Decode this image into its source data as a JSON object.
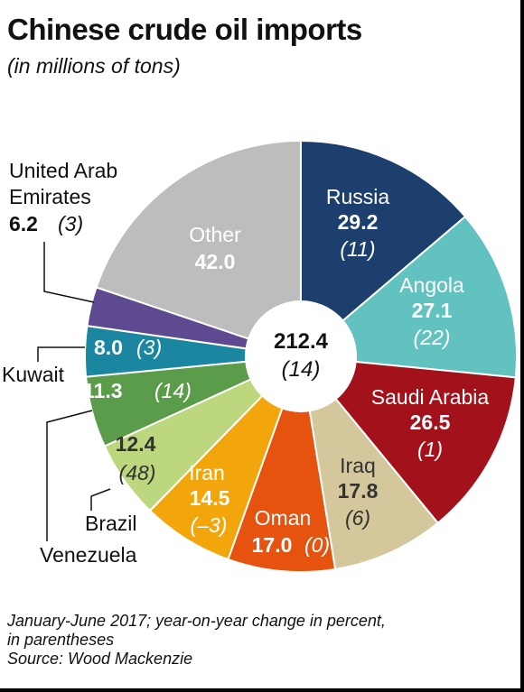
{
  "title": "Chinese crude oil imports",
  "subtitle": "(in millions of tons)",
  "footnote": {
    "line1": "January-June 2017; year-on-year change in percent,",
    "line2": "in parentheses",
    "source": "Source: Wood Mackenzie"
  },
  "chart_data": {
    "type": "pie",
    "total": {
      "value": "212.4",
      "change": "(14)"
    },
    "slices": [
      {
        "name": "Russia",
        "value": 29.2,
        "value_label": "29.2",
        "change": "(11)",
        "color": "#1c3f6e"
      },
      {
        "name": "Angola",
        "value": 27.1,
        "value_label": "27.1",
        "change": "(22)",
        "color": "#62c2bf"
      },
      {
        "name": "Saudi Arabia",
        "value": 26.5,
        "value_label": "26.5",
        "change": "(1)",
        "color": "#a3111b"
      },
      {
        "name": "Iraq",
        "value": 17.8,
        "value_label": "17.8",
        "change": "(6)",
        "color": "#d4c79b"
      },
      {
        "name": "Oman",
        "value": 17.0,
        "value_label": "17.0",
        "change": "(0)",
        "color": "#e6530f"
      },
      {
        "name": "Iran",
        "value": 14.5,
        "value_label": "14.5",
        "change": "(–3)",
        "color": "#f2a60c"
      },
      {
        "name": "Brazil",
        "value": 12.4,
        "value_label": "12.4",
        "change": "(48)",
        "color": "#bcd77e"
      },
      {
        "name": "Venezuela",
        "value": 11.3,
        "value_label": "11.3",
        "change": "(14)",
        "color": "#5b9c4a"
      },
      {
        "name": "Kuwait",
        "value": 8.0,
        "value_label": "8.0",
        "change": "(3)",
        "color": "#1a86a0"
      },
      {
        "name": "United Arab Emirates",
        "value": 6.2,
        "value_label": "6.2",
        "change": "(3)",
        "color": "#5e4a90"
      },
      {
        "name": "Other",
        "value": 42.0,
        "value_label": "42.0",
        "change": "",
        "color": "#bdbdbd"
      }
    ],
    "external_labels": {
      "uae_line1": "United Arab",
      "uae_line2": "Emirates",
      "kuwait": "Kuwait",
      "brazil": "Brazil",
      "venezuela": "Venezuela"
    }
  }
}
